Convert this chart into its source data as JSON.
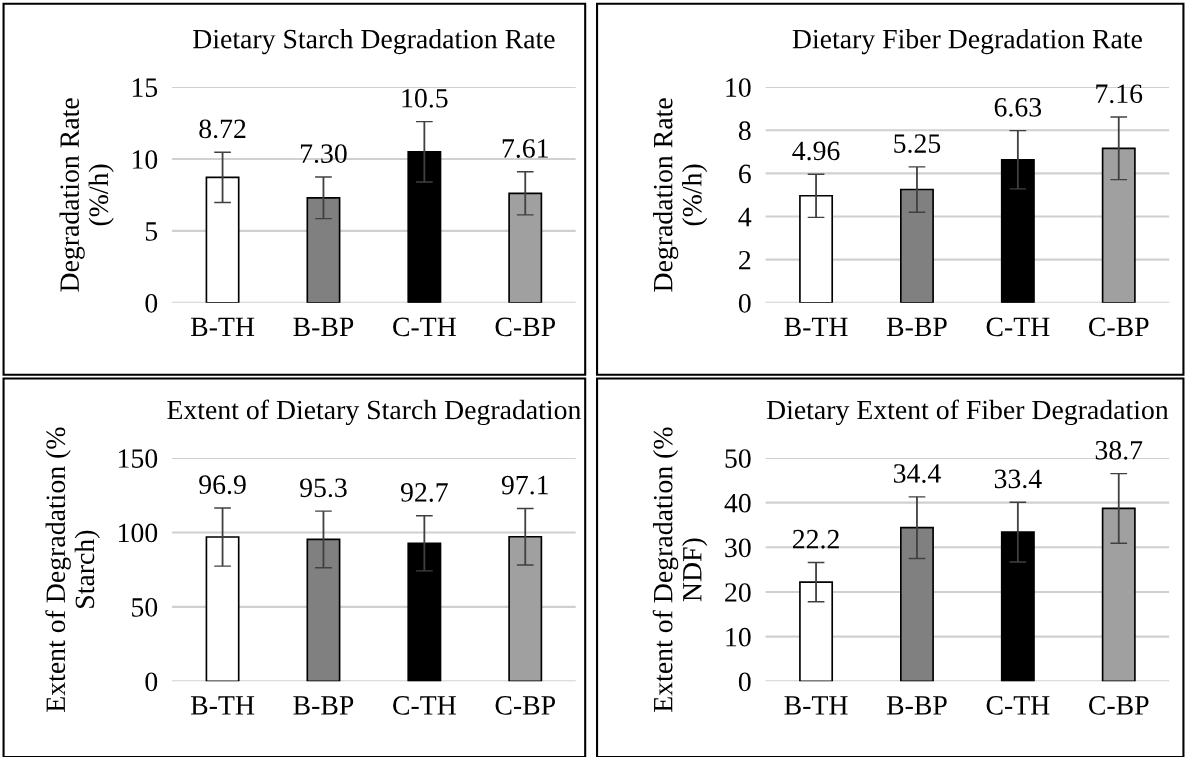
{
  "chart_data": [
    {
      "type": "bar",
      "title": "Dietary Starch Degradation Rate",
      "ylabel": "Degradation Rate\n(%/h)",
      "categories": [
        "B-TH",
        "B-BP",
        "C-TH",
        "C-BP"
      ],
      "values": [
        8.72,
        7.3,
        10.5,
        7.61
      ],
      "value_labels": [
        "8.72",
        "7.30",
        "10.5",
        "7.61"
      ],
      "errors": [
        1.75,
        1.45,
        2.1,
        1.5
      ],
      "colors": [
        "#ffffff",
        "#808080",
        "#000000",
        "#a0a0a0"
      ],
      "ylim": [
        0,
        15
      ],
      "yticks": [
        0,
        5,
        10,
        15
      ],
      "grid": "y"
    },
    {
      "type": "bar",
      "title": "Dietary Fiber Degradation Rate",
      "ylabel": "Degradation Rate\n(%/h)",
      "categories": [
        "B-TH",
        "B-BP",
        "C-TH",
        "C-BP"
      ],
      "values": [
        4.96,
        5.25,
        6.63,
        7.16
      ],
      "value_labels": [
        "4.96",
        "5.25",
        "6.63",
        "7.16"
      ],
      "errors": [
        1.0,
        1.05,
        1.35,
        1.45
      ],
      "colors": [
        "#ffffff",
        "#808080",
        "#000000",
        "#a0a0a0"
      ],
      "ylim": [
        0,
        10
      ],
      "yticks": [
        0,
        2,
        4,
        6,
        8,
        10
      ],
      "grid": "y"
    },
    {
      "type": "bar",
      "title": "Extent of Dietary Starch Degradation",
      "ylabel": "Extent of Degradation (%\nStarch)",
      "categories": [
        "B-TH",
        "B-BP",
        "C-TH",
        "C-BP"
      ],
      "values": [
        96.9,
        95.3,
        92.7,
        97.1
      ],
      "value_labels": [
        "96.9",
        "95.3",
        "92.7",
        "97.1"
      ],
      "errors": [
        19.5,
        19,
        18.5,
        19
      ],
      "colors": [
        "#ffffff",
        "#808080",
        "#000000",
        "#a0a0a0"
      ],
      "ylim": [
        0,
        150
      ],
      "yticks": [
        0,
        50,
        100,
        150
      ],
      "grid": "y"
    },
    {
      "type": "bar",
      "title": "Dietary Extent of Fiber Degradation",
      "ylabel": "Extent of Degradation (%\nNDF)",
      "categories": [
        "B-TH",
        "B-BP",
        "C-TH",
        "C-BP"
      ],
      "values": [
        22.2,
        34.4,
        33.4,
        38.7
      ],
      "value_labels": [
        "22.2",
        "34.4",
        "33.4",
        "38.7"
      ],
      "errors": [
        4.4,
        6.9,
        6.7,
        7.8
      ],
      "colors": [
        "#ffffff",
        "#808080",
        "#000000",
        "#a0a0a0"
      ],
      "ylim": [
        0,
        50
      ],
      "yticks": [
        0,
        10,
        20,
        30,
        40,
        50
      ],
      "grid": "y"
    }
  ]
}
